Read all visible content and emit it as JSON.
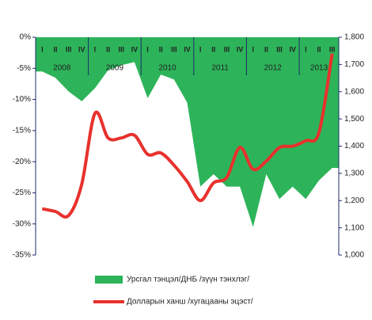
{
  "chart_data": {
    "type": "area-line",
    "categories": [
      "I",
      "II",
      "III",
      "IV",
      "I",
      "II",
      "III",
      "IV",
      "I",
      "II",
      "III",
      "IV",
      "I",
      "II",
      "III",
      "IV",
      "I",
      "II",
      "III",
      "IV",
      "I",
      "II",
      "III"
    ],
    "years": [
      "2008",
      "2009",
      "2010",
      "2011",
      "2012",
      "2013"
    ],
    "series": [
      {
        "name": "Урсгал тэнцэл/ДНБ /зүүн тэнхлэг/",
        "color": "#2db45a",
        "type": "area",
        "values": [
          -5.5,
          -6.5,
          -8.7,
          -10.3,
          -8.2,
          -5.3,
          -4.5,
          -4.0,
          -9.8,
          -6.0,
          -6.8,
          -10.5,
          -24,
          -22,
          -24,
          -24,
          -30.5,
          -22,
          -26,
          -24,
          -26,
          -23,
          -21
        ]
      },
      {
        "name": "Долларын ханш /хугацааны эцэст/",
        "color": "#e8312d",
        "type": "line",
        "axis": "y2",
        "values": [
          1170,
          1160,
          1145,
          1260,
          1520,
          1430,
          1430,
          1440,
          1370,
          1375,
          1330,
          1270,
          1200,
          1265,
          1285,
          1395,
          1315,
          1345,
          1395,
          1400,
          1420,
          1450,
          1740
        ]
      }
    ],
    "ylim": [
      -35,
      0
    ],
    "yticks": [
      {
        "value": 0,
        "label": "0%"
      },
      {
        "value": -5,
        "label": "-5%"
      },
      {
        "value": -10,
        "label": "-10%"
      },
      {
        "value": -15,
        "label": "-15%"
      },
      {
        "value": -20,
        "label": "-20%"
      },
      {
        "value": -25,
        "label": "-25%"
      },
      {
        "value": -30,
        "label": "-30%"
      },
      {
        "value": -35,
        "label": "-35%"
      }
    ],
    "y2lim": [
      1000,
      1800
    ],
    "y2ticks": [
      {
        "value": 1800,
        "label": "1,800"
      },
      {
        "value": 1700,
        "label": "1,700"
      },
      {
        "value": 1600,
        "label": "1,600"
      },
      {
        "value": 1500,
        "label": "1,500"
      },
      {
        "value": 1400,
        "label": "1,400"
      },
      {
        "value": 1300,
        "label": "1,300"
      },
      {
        "value": 1200,
        "label": "1,200"
      },
      {
        "value": 1100,
        "label": "1,100"
      },
      {
        "value": 1000,
        "label": "1,000"
      }
    ]
  }
}
